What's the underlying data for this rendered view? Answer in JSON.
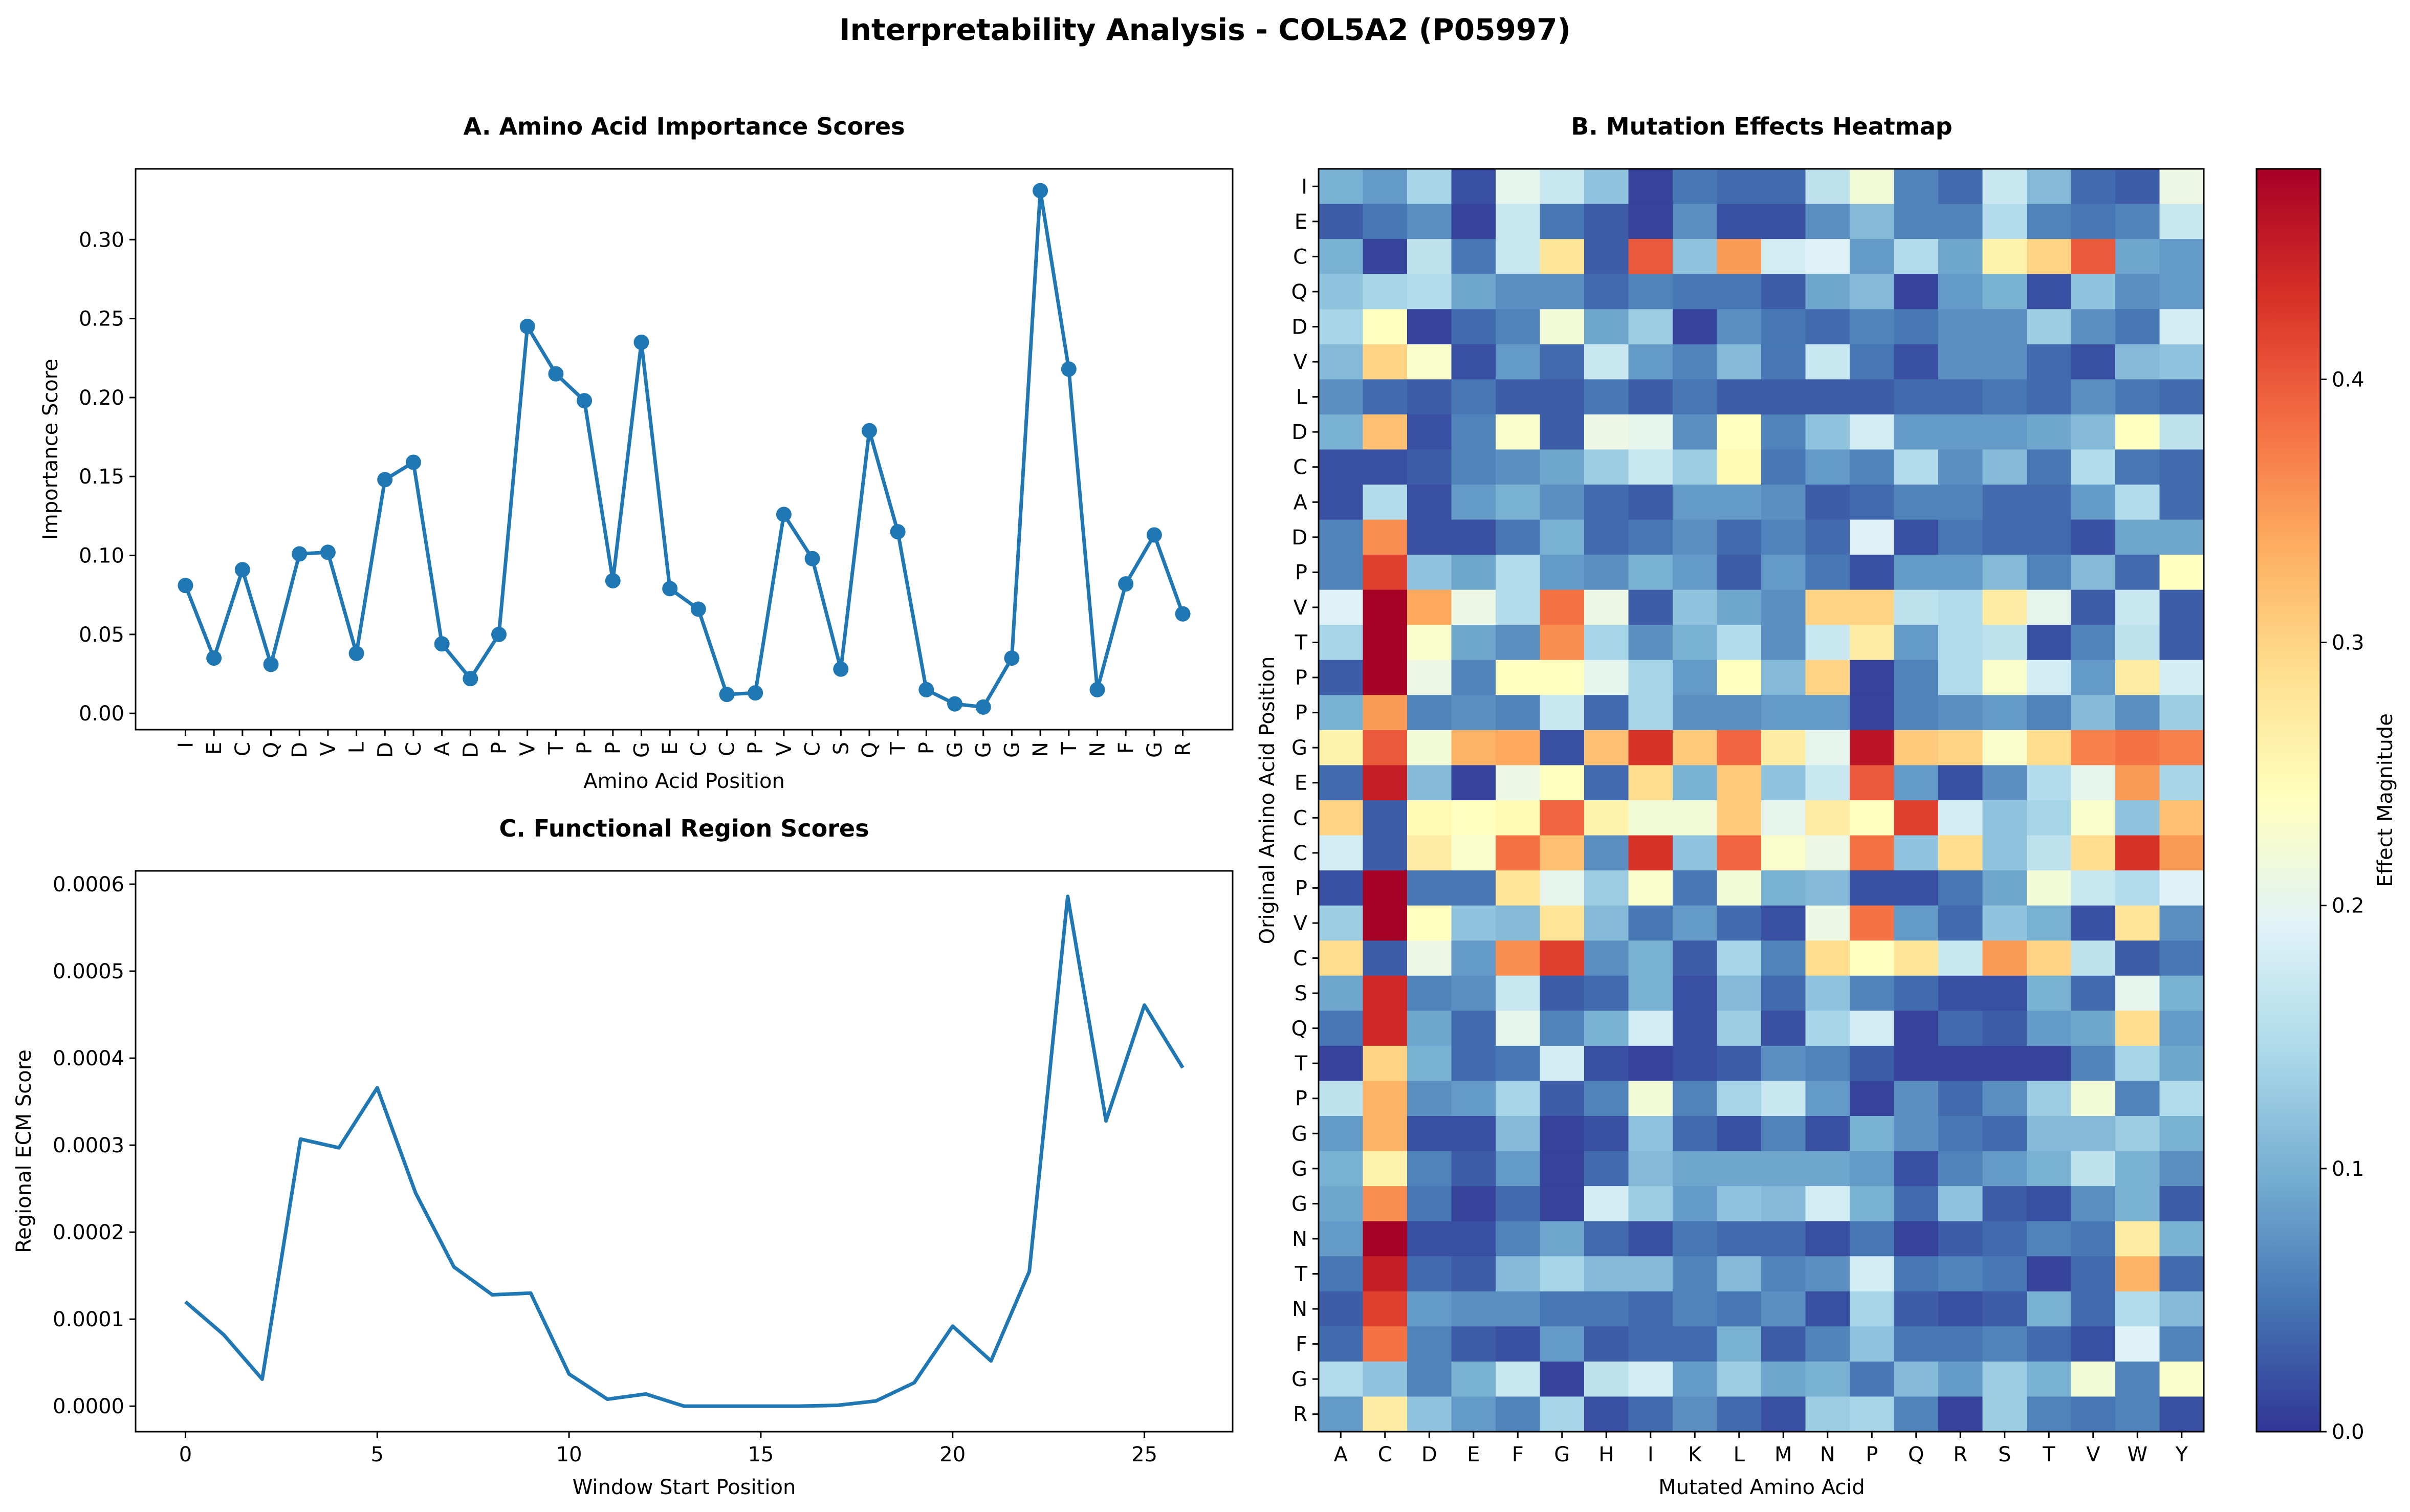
{
  "suptitle": "Interpretability Analysis - COL5A2 (P05997)",
  "colors": {
    "line": "#1f77b4",
    "cmap": [
      "#313695",
      "#4575b4",
      "#74add1",
      "#abd9e9",
      "#e0f3f8",
      "#ffffbf",
      "#fee090",
      "#fdae61",
      "#f46d43",
      "#d73027",
      "#a50026"
    ]
  },
  "chart_data": [
    {
      "id": "A",
      "type": "line",
      "title": "A. Amino Acid Importance Scores",
      "xlabel": "Amino Acid Position",
      "ylabel": "Importance Score",
      "markers": true,
      "categories": [
        "I",
        "E",
        "C",
        "Q",
        "D",
        "V",
        "L",
        "D",
        "C",
        "A",
        "D",
        "P",
        "V",
        "T",
        "P",
        "P",
        "G",
        "E",
        "C",
        "C",
        "P",
        "V",
        "C",
        "S",
        "Q",
        "T",
        "P",
        "G",
        "G",
        "G",
        "N",
        "T",
        "N",
        "F",
        "G",
        "R"
      ],
      "values": [
        0.081,
        0.035,
        0.091,
        0.031,
        0.101,
        0.102,
        0.038,
        0.148,
        0.159,
        0.044,
        0.022,
        0.05,
        0.245,
        0.215,
        0.198,
        0.084,
        0.235,
        0.079,
        0.066,
        0.012,
        0.013,
        0.126,
        0.098,
        0.028,
        0.179,
        0.115,
        0.015,
        0.006,
        0.004,
        0.035,
        0.331,
        0.218,
        0.015,
        0.082,
        0.113,
        0.063
      ],
      "ylim": [
        -0.0103,
        0.3448
      ],
      "yticks": [
        "0.00",
        "0.05",
        "0.10",
        "0.15",
        "0.20",
        "0.25",
        "0.30"
      ],
      "grid": false
    },
    {
      "id": "B",
      "type": "heatmap",
      "title": "B. Mutation Effects Heatmap",
      "xlabel": "Mutated Amino Acid",
      "ylabel": "Original Amino Acid Position",
      "colorbar_label": "Effect Magnitude",
      "vmin": 0.0,
      "vmax": 0.48,
      "colorbar_ticks": [
        "0.0",
        "0.1",
        "0.2",
        "0.3",
        "0.4"
      ],
      "columns": [
        "A",
        "C",
        "D",
        "E",
        "F",
        "G",
        "H",
        "I",
        "K",
        "L",
        "M",
        "N",
        "P",
        "Q",
        "R",
        "S",
        "T",
        "V",
        "W",
        "Y"
      ],
      "rows": [
        "I",
        "E",
        "C",
        "Q",
        "D",
        "V",
        "L",
        "D",
        "C",
        "A",
        "D",
        "P",
        "V",
        "T",
        "P",
        "P",
        "G",
        "E",
        "C",
        "C",
        "P",
        "V",
        "C",
        "S",
        "Q",
        "T",
        "P",
        "G",
        "G",
        "G",
        "N",
        "T",
        "N",
        "F",
        "G",
        "R"
      ],
      "values": [
        [
          0.1,
          0.08,
          0.14,
          0.02,
          0.2,
          0.17,
          0.12,
          0.01,
          0.05,
          0.04,
          0.04,
          0.16,
          0.22,
          0.06,
          0.04,
          0.17,
          0.11,
          0.04,
          0.03,
          0.21
        ],
        [
          0.03,
          0.05,
          0.07,
          0.01,
          0.17,
          0.05,
          0.03,
          0.01,
          0.07,
          0.02,
          0.02,
          0.07,
          0.11,
          0.06,
          0.06,
          0.15,
          0.06,
          0.05,
          0.06,
          0.17
        ],
        [
          0.1,
          0.01,
          0.16,
          0.05,
          0.17,
          0.28,
          0.03,
          0.4,
          0.12,
          0.35,
          0.18,
          0.19,
          0.08,
          0.15,
          0.09,
          0.26,
          0.3,
          0.4,
          0.09,
          0.08
        ],
        [
          0.12,
          0.14,
          0.15,
          0.09,
          0.07,
          0.07,
          0.04,
          0.06,
          0.05,
          0.05,
          0.03,
          0.09,
          0.11,
          0.01,
          0.08,
          0.1,
          0.02,
          0.12,
          0.07,
          0.08
        ],
        [
          0.14,
          0.24,
          0.01,
          0.04,
          0.06,
          0.22,
          0.09,
          0.13,
          0.01,
          0.07,
          0.05,
          0.04,
          0.06,
          0.05,
          0.07,
          0.07,
          0.13,
          0.07,
          0.05,
          0.18
        ],
        [
          0.11,
          0.3,
          0.23,
          0.02,
          0.08,
          0.04,
          0.17,
          0.08,
          0.06,
          0.11,
          0.05,
          0.17,
          0.05,
          0.02,
          0.07,
          0.07,
          0.04,
          0.02,
          0.11,
          0.12
        ],
        [
          0.07,
          0.04,
          0.03,
          0.05,
          0.03,
          0.03,
          0.05,
          0.03,
          0.05,
          0.03,
          0.03,
          0.03,
          0.03,
          0.04,
          0.04,
          0.05,
          0.04,
          0.07,
          0.05,
          0.04
        ],
        [
          0.1,
          0.32,
          0.02,
          0.06,
          0.23,
          0.03,
          0.21,
          0.2,
          0.07,
          0.24,
          0.06,
          0.12,
          0.18,
          0.08,
          0.08,
          0.08,
          0.09,
          0.11,
          0.24,
          0.16
        ],
        [
          0.02,
          0.02,
          0.03,
          0.06,
          0.07,
          0.09,
          0.13,
          0.17,
          0.13,
          0.25,
          0.05,
          0.08,
          0.06,
          0.15,
          0.07,
          0.11,
          0.05,
          0.15,
          0.05,
          0.04
        ],
        [
          0.02,
          0.15,
          0.02,
          0.08,
          0.1,
          0.07,
          0.04,
          0.03,
          0.08,
          0.08,
          0.07,
          0.03,
          0.04,
          0.06,
          0.06,
          0.04,
          0.04,
          0.08,
          0.15,
          0.04
        ],
        [
          0.06,
          0.36,
          0.02,
          0.02,
          0.05,
          0.1,
          0.04,
          0.05,
          0.07,
          0.04,
          0.06,
          0.04,
          0.19,
          0.02,
          0.05,
          0.04,
          0.04,
          0.02,
          0.09,
          0.09
        ],
        [
          0.06,
          0.42,
          0.12,
          0.09,
          0.15,
          0.08,
          0.07,
          0.1,
          0.08,
          0.03,
          0.08,
          0.05,
          0.02,
          0.08,
          0.08,
          0.11,
          0.06,
          0.11,
          0.04,
          0.24
        ],
        [
          0.19,
          0.48,
          0.34,
          0.21,
          0.15,
          0.38,
          0.21,
          0.03,
          0.12,
          0.09,
          0.07,
          0.3,
          0.3,
          0.16,
          0.15,
          0.27,
          0.2,
          0.03,
          0.17,
          0.03
        ],
        [
          0.14,
          0.48,
          0.23,
          0.09,
          0.07,
          0.36,
          0.14,
          0.07,
          0.1,
          0.15,
          0.07,
          0.17,
          0.27,
          0.08,
          0.15,
          0.16,
          0.02,
          0.06,
          0.16,
          0.03
        ],
        [
          0.03,
          0.48,
          0.21,
          0.06,
          0.24,
          0.24,
          0.2,
          0.14,
          0.08,
          0.24,
          0.11,
          0.3,
          0.01,
          0.06,
          0.15,
          0.23,
          0.18,
          0.08,
          0.27,
          0.18
        ],
        [
          0.1,
          0.35,
          0.06,
          0.07,
          0.06,
          0.17,
          0.04,
          0.14,
          0.07,
          0.07,
          0.08,
          0.08,
          0.01,
          0.06,
          0.07,
          0.08,
          0.06,
          0.11,
          0.07,
          0.13
        ],
        [
          0.26,
          0.4,
          0.22,
          0.33,
          0.34,
          0.02,
          0.32,
          0.43,
          0.31,
          0.39,
          0.27,
          0.2,
          0.46,
          0.31,
          0.3,
          0.23,
          0.29,
          0.37,
          0.38,
          0.37
        ],
        [
          0.04,
          0.45,
          0.11,
          0.01,
          0.21,
          0.24,
          0.04,
          0.29,
          0.1,
          0.31,
          0.12,
          0.17,
          0.4,
          0.08,
          0.02,
          0.07,
          0.15,
          0.2,
          0.35,
          0.14
        ],
        [
          0.3,
          0.03,
          0.25,
          0.24,
          0.25,
          0.39,
          0.26,
          0.22,
          0.22,
          0.31,
          0.2,
          0.27,
          0.24,
          0.42,
          0.18,
          0.12,
          0.14,
          0.23,
          0.12,
          0.32
        ],
        [
          0.18,
          0.03,
          0.27,
          0.23,
          0.38,
          0.32,
          0.07,
          0.43,
          0.12,
          0.39,
          0.23,
          0.21,
          0.38,
          0.12,
          0.29,
          0.12,
          0.16,
          0.29,
          0.43,
          0.35
        ],
        [
          0.02,
          0.48,
          0.05,
          0.05,
          0.28,
          0.2,
          0.13,
          0.23,
          0.05,
          0.22,
          0.1,
          0.11,
          0.02,
          0.02,
          0.05,
          0.09,
          0.22,
          0.17,
          0.15,
          0.19
        ],
        [
          0.13,
          0.48,
          0.24,
          0.12,
          0.11,
          0.28,
          0.11,
          0.05,
          0.08,
          0.04,
          0.02,
          0.21,
          0.38,
          0.08,
          0.04,
          0.12,
          0.1,
          0.02,
          0.28,
          0.07
        ],
        [
          0.29,
          0.03,
          0.21,
          0.08,
          0.36,
          0.42,
          0.07,
          0.1,
          0.03,
          0.14,
          0.06,
          0.29,
          0.24,
          0.28,
          0.17,
          0.35,
          0.3,
          0.16,
          0.03,
          0.05
        ],
        [
          0.09,
          0.44,
          0.06,
          0.07,
          0.17,
          0.03,
          0.04,
          0.1,
          0.02,
          0.11,
          0.04,
          0.12,
          0.06,
          0.04,
          0.02,
          0.02,
          0.1,
          0.04,
          0.2,
          0.1
        ],
        [
          0.05,
          0.44,
          0.09,
          0.04,
          0.2,
          0.06,
          0.1,
          0.18,
          0.02,
          0.13,
          0.02,
          0.14,
          0.18,
          0.01,
          0.04,
          0.03,
          0.08,
          0.09,
          0.29,
          0.08
        ],
        [
          0.01,
          0.3,
          0.1,
          0.04,
          0.05,
          0.18,
          0.02,
          0.01,
          0.02,
          0.03,
          0.07,
          0.06,
          0.03,
          0.01,
          0.01,
          0.01,
          0.01,
          0.06,
          0.14,
          0.09
        ],
        [
          0.16,
          0.33,
          0.07,
          0.08,
          0.14,
          0.03,
          0.06,
          0.22,
          0.06,
          0.14,
          0.17,
          0.08,
          0.01,
          0.07,
          0.04,
          0.07,
          0.13,
          0.22,
          0.06,
          0.15
        ],
        [
          0.08,
          0.33,
          0.02,
          0.02,
          0.11,
          0.01,
          0.02,
          0.12,
          0.04,
          0.02,
          0.06,
          0.02,
          0.1,
          0.07,
          0.05,
          0.04,
          0.11,
          0.11,
          0.13,
          0.1
        ],
        [
          0.1,
          0.26,
          0.06,
          0.03,
          0.08,
          0.01,
          0.04,
          0.11,
          0.09,
          0.09,
          0.09,
          0.09,
          0.08,
          0.02,
          0.06,
          0.08,
          0.1,
          0.16,
          0.1,
          0.07
        ],
        [
          0.09,
          0.36,
          0.05,
          0.01,
          0.04,
          0.01,
          0.18,
          0.13,
          0.08,
          0.12,
          0.11,
          0.18,
          0.1,
          0.04,
          0.12,
          0.03,
          0.02,
          0.07,
          0.1,
          0.03
        ],
        [
          0.08,
          0.48,
          0.02,
          0.02,
          0.06,
          0.09,
          0.04,
          0.02,
          0.05,
          0.04,
          0.04,
          0.02,
          0.05,
          0.01,
          0.03,
          0.04,
          0.06,
          0.05,
          0.27,
          0.1
        ],
        [
          0.05,
          0.45,
          0.04,
          0.03,
          0.11,
          0.14,
          0.11,
          0.11,
          0.06,
          0.11,
          0.06,
          0.07,
          0.18,
          0.05,
          0.06,
          0.05,
          0.01,
          0.04,
          0.33,
          0.04
        ],
        [
          0.03,
          0.42,
          0.08,
          0.07,
          0.07,
          0.05,
          0.05,
          0.04,
          0.06,
          0.05,
          0.07,
          0.02,
          0.14,
          0.03,
          0.02,
          0.03,
          0.1,
          0.04,
          0.15,
          0.11
        ],
        [
          0.04,
          0.38,
          0.06,
          0.03,
          0.02,
          0.08,
          0.03,
          0.04,
          0.04,
          0.1,
          0.03,
          0.06,
          0.12,
          0.05,
          0.05,
          0.06,
          0.04,
          0.02,
          0.19,
          0.06
        ],
        [
          0.15,
          0.12,
          0.06,
          0.1,
          0.17,
          0.01,
          0.16,
          0.18,
          0.08,
          0.13,
          0.09,
          0.1,
          0.05,
          0.11,
          0.08,
          0.13,
          0.1,
          0.22,
          0.06,
          0.23
        ],
        [
          0.08,
          0.27,
          0.12,
          0.08,
          0.06,
          0.14,
          0.02,
          0.04,
          0.07,
          0.04,
          0.02,
          0.13,
          0.14,
          0.06,
          0.01,
          0.13,
          0.06,
          0.05,
          0.06,
          0.02
        ]
      ]
    },
    {
      "id": "C",
      "type": "line",
      "title": "C. Functional Region Scores",
      "xlabel": "Window Start Position",
      "ylabel": "Regional ECM Score",
      "markers": false,
      "x": [
        0,
        1,
        2,
        3,
        4,
        5,
        6,
        7,
        8,
        9,
        10,
        11,
        12,
        13,
        14,
        15,
        16,
        17,
        18,
        19,
        20,
        21,
        22,
        23,
        24,
        25,
        26
      ],
      "values": [
        0.00012,
        8.2e-05,
        3.1e-05,
        0.000307,
        0.000297,
        0.000366,
        0.000245,
        0.00016,
        0.000128,
        0.00013,
        3.7e-05,
        8e-06,
        1.4e-05,
        0.0,
        0.0,
        0.0,
        0.0,
        1e-06,
        6e-06,
        2.7e-05,
        9.2e-05,
        5.2e-05,
        0.000155,
        0.000586,
        0.000328,
        0.000461,
        0.000389
      ],
      "xlim": [
        -1.3,
        27.3
      ],
      "ylim": [
        -2.93e-05,
        0.0006153
      ],
      "xticks": [
        0,
        5,
        10,
        15,
        20,
        25
      ],
      "yticks": [
        "0.0000",
        "0.0001",
        "0.0002",
        "0.0003",
        "0.0004",
        "0.0005",
        "0.0006"
      ],
      "grid": false
    }
  ]
}
